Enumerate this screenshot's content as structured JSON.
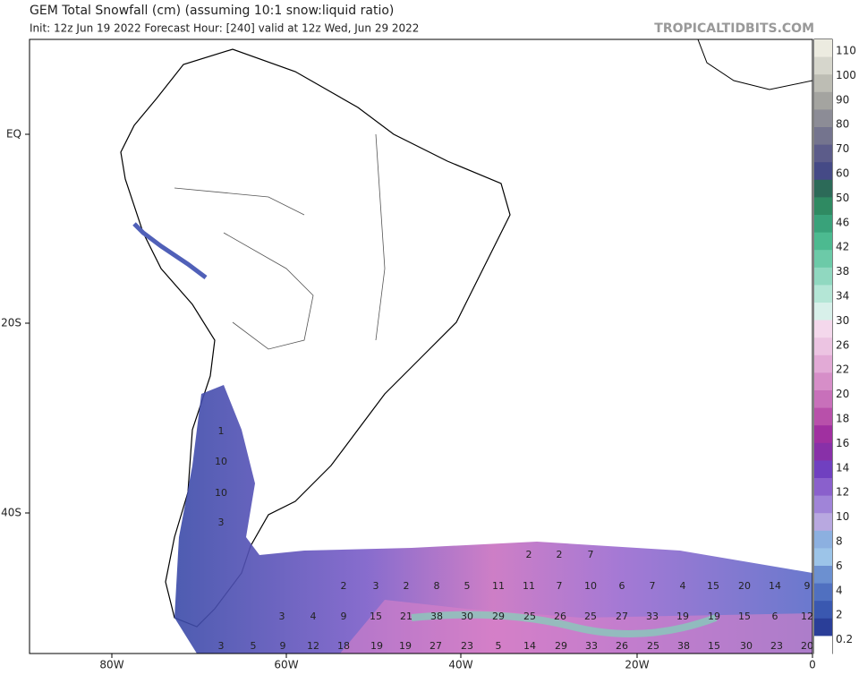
{
  "header": {
    "title": "GEM Total Snowfall (cm) (assuming 10:1 snow:liquid ratio)",
    "subtitle": "Init: 12z Jun 19 2022   Forecast Hour: [240]   valid at 12z Wed, Jun 29 2022",
    "watermark": "TROPICALTIDBITS.COM"
  },
  "axes": {
    "lat_labels": [
      "EQ",
      "20S",
      "40S"
    ],
    "lon_labels": [
      "80W",
      "60W",
      "40W",
      "20W",
      "0"
    ]
  },
  "colorbar": {
    "labels": [
      "110",
      "100",
      "90",
      "80",
      "70",
      "60",
      "50",
      "46",
      "42",
      "38",
      "34",
      "30",
      "26",
      "22",
      "20",
      "18",
      "16",
      "14",
      "12",
      "10",
      "8",
      "6",
      "4",
      "2",
      "0.2"
    ]
  },
  "map_labels": {
    "rows": [
      [
        "1",
        "10",
        "10",
        "3"
      ],
      [
        "2",
        "2",
        "7"
      ],
      [
        "2",
        "3",
        "2",
        "8",
        "5",
        "11",
        "11",
        "7",
        "10",
        "6",
        "7",
        "4",
        "15",
        "20",
        "14",
        "9"
      ],
      [
        "3",
        "4",
        "9",
        "15",
        "21",
        "38",
        "30",
        "29",
        "25",
        "26",
        "25",
        "27",
        "33",
        "19",
        "19",
        "15",
        "6",
        "12"
      ],
      [
        "3",
        "5",
        "9",
        "12",
        "18",
        "19",
        "19",
        "27",
        "23",
        "5",
        "14",
        "29",
        "33",
        "26",
        "25",
        "38",
        "15",
        "30",
        "23",
        "20"
      ]
    ]
  }
}
